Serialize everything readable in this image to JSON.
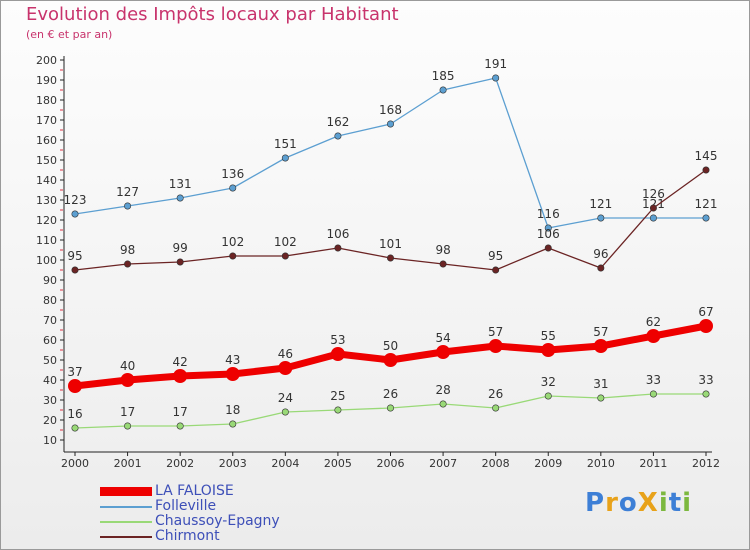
{
  "chart_data": {
    "type": "line",
    "title": "Evolution des Impôts locaux par Habitant",
    "subtitle": "(en € et par an)",
    "xlabel": "",
    "ylabel": "",
    "ylim": [
      10,
      200
    ],
    "ytick_step": 10,
    "categories": [
      "2000",
      "2001",
      "2002",
      "2003",
      "2004",
      "2005",
      "2006",
      "2007",
      "2008",
      "2009",
      "2010",
      "2011",
      "2012"
    ],
    "series": [
      {
        "name": "Folleville",
        "color": "#5c9fd1",
        "values": [
          123,
          127,
          131,
          136,
          151,
          162,
          168,
          185,
          191,
          116,
          121,
          121,
          121
        ]
      },
      {
        "name": "Chirmont",
        "color": "#6b2424",
        "values": [
          95,
          98,
          99,
          102,
          102,
          106,
          101,
          98,
          95,
          106,
          96,
          126,
          145
        ]
      },
      {
        "name": "Chaussoy-Epagny",
        "color": "#99d977",
        "values": [
          16,
          17,
          17,
          18,
          24,
          25,
          26,
          28,
          26,
          32,
          31,
          33,
          33
        ]
      },
      {
        "name": "LA FALOISE",
        "color": "#ee0000",
        "values": [
          37,
          40,
          42,
          43,
          46,
          53,
          50,
          54,
          57,
          55,
          57,
          62,
          67
        ]
      }
    ],
    "legend": [
      {
        "name": "LA FALOISE",
        "color": "#ee0000"
      },
      {
        "name": "Folleville",
        "color": "#5c9fd1"
      },
      {
        "name": "Chaussoy-Epagny",
        "color": "#99d977"
      },
      {
        "name": "Chirmont",
        "color": "#6b2424"
      }
    ],
    "grid": false
  },
  "logo": {
    "letters": [
      {
        "char": "P",
        "color": "#3d7fd6"
      },
      {
        "char": "r",
        "color": "#e8a21a"
      },
      {
        "char": "o",
        "color": "#3d7fd6"
      },
      {
        "char": "X",
        "color": "#e8a21a"
      },
      {
        "char": "i",
        "color": "#7cb83e"
      },
      {
        "char": "t",
        "color": "#3d7fd6"
      },
      {
        "char": "i",
        "color": "#7cb83e"
      }
    ]
  }
}
